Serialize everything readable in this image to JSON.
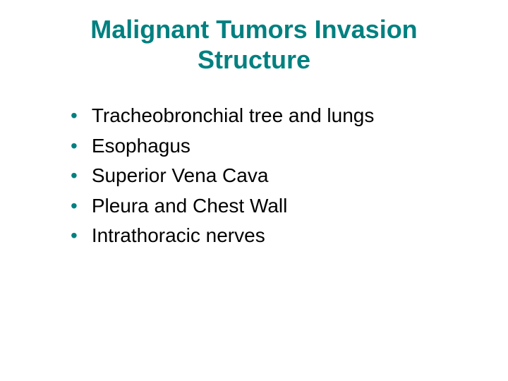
{
  "slide": {
    "title": "Malignant Tumors Invasion Structure",
    "title_color": "#008080",
    "title_fontsize": 36,
    "bullet_color": "#008080",
    "text_color": "#000000",
    "body_fontsize": 28,
    "background_color": "#ffffff",
    "bullets": [
      "Tracheobronchial tree and lungs",
      "Esophagus",
      "Superior Vena Cava",
      "Pleura and Chest Wall",
      "Intrathoracic nerves"
    ]
  }
}
